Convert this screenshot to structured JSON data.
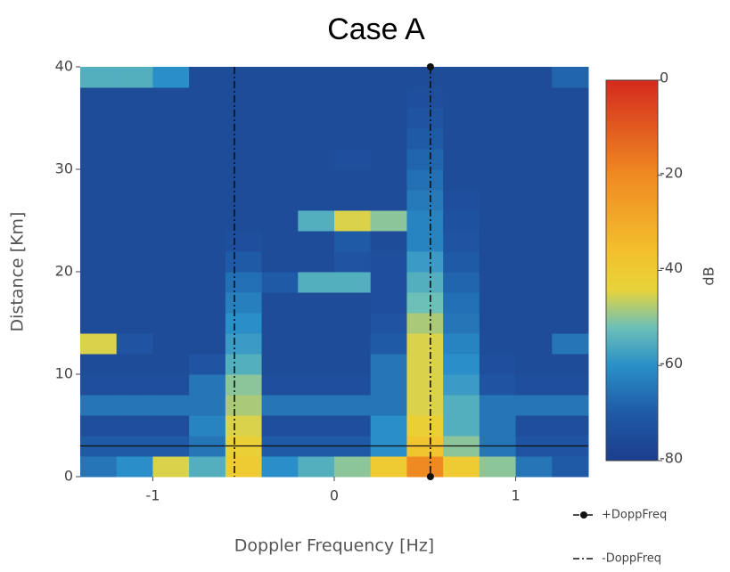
{
  "chart_data": {
    "type": "heatmap",
    "title": "Case A",
    "x_label": "Doppler Frequency [Hz]",
    "y_label": "Distance [Km]",
    "x_bins": [
      -1.4,
      -1.2,
      -1.0,
      -0.8,
      -0.6,
      -0.4,
      -0.2,
      0,
      0.2,
      0.4,
      0.6,
      0.8,
      1.0,
      1.2,
      1.4
    ],
    "y_bins": [
      0,
      2,
      4,
      6,
      8,
      10,
      12,
      14,
      16,
      18,
      20,
      22,
      24,
      26,
      28,
      30,
      32,
      34,
      36,
      38,
      40
    ],
    "z": [
      [
        -65,
        -60,
        -45,
        -55,
        -40,
        -60,
        -55,
        -50,
        -40,
        -20,
        -40,
        -50,
        -65,
        -70
      ],
      [
        -70,
        -70,
        -70,
        -65,
        -42,
        -70,
        -70,
        -70,
        -60,
        -38,
        -50,
        -65,
        -72,
        -72
      ],
      [
        -74,
        -74,
        -74,
        -62,
        -45,
        -74,
        -74,
        -74,
        -60,
        -42,
        -55,
        -65,
        -74,
        -74
      ],
      [
        -65,
        -65,
        -65,
        -65,
        -48,
        -65,
        -65,
        -65,
        -65,
        -45,
        -55,
        -65,
        -65,
        -65
      ],
      [
        -74,
        -74,
        -74,
        -65,
        -50,
        -74,
        -74,
        -74,
        -65,
        -45,
        -58,
        -72,
        -74,
        -74
      ],
      [
        -75,
        -75,
        -75,
        -72,
        -55,
        -75,
        -75,
        -75,
        -65,
        -45,
        -60,
        -74,
        -75,
        -75
      ],
      [
        -45,
        -72,
        -75,
        -75,
        -58,
        -75,
        -75,
        -75,
        -70,
        -45,
        -62,
        -75,
        -75,
        -65
      ],
      [
        -75,
        -75,
        -75,
        -75,
        -60,
        -75,
        -75,
        -75,
        -72,
        -48,
        -65,
        -75,
        -75,
        -75
      ],
      [
        -75,
        -75,
        -75,
        -75,
        -63,
        -75,
        -75,
        -75,
        -74,
        -52,
        -66,
        -75,
        -75,
        -75
      ],
      [
        -75,
        -75,
        -75,
        -75,
        -66,
        -70,
        -55,
        -55,
        -74,
        -55,
        -68,
        -75,
        -75,
        -75
      ],
      [
        -75,
        -75,
        -75,
        -75,
        -70,
        -75,
        -75,
        -72,
        -74,
        -58,
        -70,
        -75,
        -75,
        -75
      ],
      [
        -75,
        -75,
        -75,
        -75,
        -74,
        -75,
        -75,
        -70,
        -75,
        -62,
        -72,
        -75,
        -75,
        -75
      ],
      [
        -75,
        -75,
        -75,
        -75,
        -75,
        -75,
        -55,
        -45,
        -50,
        -62,
        -73,
        -75,
        -75,
        -75
      ],
      [
        -75,
        -75,
        -75,
        -75,
        -75,
        -75,
        -75,
        -75,
        -75,
        -64,
        -74,
        -75,
        -75,
        -75
      ],
      [
        -75,
        -75,
        -75,
        -75,
        -75,
        -75,
        -75,
        -75,
        -75,
        -66,
        -75,
        -75,
        -75,
        -75
      ],
      [
        -75,
        -75,
        -75,
        -75,
        -75,
        -75,
        -75,
        -74,
        -75,
        -68,
        -75,
        -75,
        -75,
        -75
      ],
      [
        -75,
        -75,
        -75,
        -75,
        -75,
        -75,
        -75,
        -75,
        -75,
        -70,
        -75,
        -75,
        -75,
        -75
      ],
      [
        -75,
        -75,
        -75,
        -75,
        -75,
        -75,
        -75,
        -75,
        -75,
        -72,
        -75,
        -75,
        -75,
        -75
      ],
      [
        -75,
        -75,
        -75,
        -75,
        -75,
        -75,
        -75,
        -75,
        -75,
        -74,
        -75,
        -75,
        -75,
        -75
      ],
      [
        -55,
        -55,
        -60,
        -75,
        -75,
        -75,
        -75,
        -75,
        -75,
        -75,
        -75,
        -75,
        -75,
        -68
      ]
    ],
    "xlim": [
      -1.4,
      1.4
    ],
    "xticks": [
      -1,
      0,
      1
    ],
    "ylim": [
      0,
      40
    ],
    "yticks": [
      0,
      10,
      20,
      30,
      40
    ],
    "zlim": [
      -80,
      0
    ],
    "zticks": [
      0,
      -20,
      -40,
      -60,
      -80
    ],
    "colorbar_title": "dB",
    "colorscale": [
      [
        -80,
        "#1c3d8c"
      ],
      [
        -70,
        "#1f5aa6"
      ],
      [
        -60,
        "#2a8fc8"
      ],
      [
        -52,
        "#6cc0b8"
      ],
      [
        -44,
        "#e8d43a"
      ],
      [
        -36,
        "#f3c02c"
      ],
      [
        -20,
        "#ef8a22"
      ],
      [
        0,
        "#d42a1e"
      ]
    ],
    "hline": 3,
    "lines": [
      {
        "name": "+DoppFreq",
        "x": 0.53,
        "marker": true
      },
      {
        "name": "-DoppFreq",
        "x": -0.55,
        "marker": false
      }
    ]
  }
}
